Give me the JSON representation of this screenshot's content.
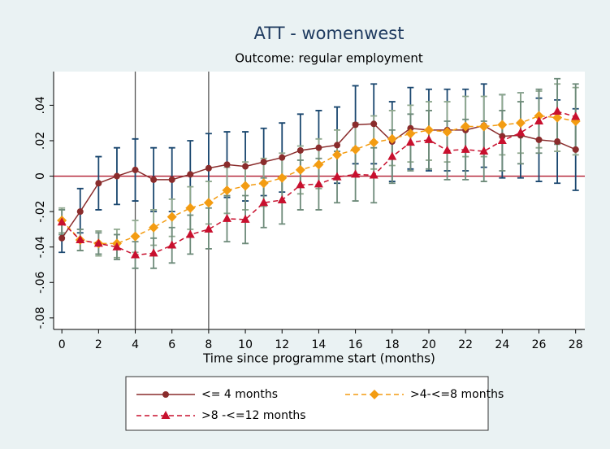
{
  "chart_data": {
    "type": "line",
    "title": "ATT - womenwest",
    "subtitle": "Outcome: regular employment",
    "x_label": "Time since programme start (months)",
    "x": [
      0,
      1,
      2,
      3,
      4,
      5,
      6,
      7,
      8,
      9,
      10,
      11,
      12,
      13,
      14,
      15,
      16,
      17,
      18,
      19,
      20,
      21,
      22,
      23,
      24,
      25,
      26,
      27,
      28
    ],
    "xlim": [
      -0.45,
      28.5
    ],
    "xticks": [
      0,
      2,
      4,
      6,
      8,
      10,
      12,
      14,
      16,
      18,
      20,
      22,
      24,
      26,
      28
    ],
    "ylim": [
      -0.0865,
      0.059
    ],
    "yticks": [
      {
        "value": -0.08,
        "label": "-.08"
      },
      {
        "value": -0.06,
        "label": "-.06"
      },
      {
        "value": -0.04,
        "label": "-.04"
      },
      {
        "value": -0.02,
        "label": "-.02"
      },
      0,
      {
        "value": 0.02,
        "label": ".02"
      },
      {
        "value": 0.04,
        "label": ".04"
      }
    ],
    "vlines": [
      4,
      8
    ],
    "hline": 0,
    "hline_color": "#b0182e",
    "series": [
      {
        "name": "<= 4 months",
        "color": "#8a2c2c",
        "ci_color": "#1a476f",
        "marker": "circle",
        "dashed": false,
        "values": [
          -0.035,
          -0.02,
          -0.004,
          0,
          0.0035,
          -0.002,
          -0.002,
          0.001,
          0.0045,
          0.0065,
          0.0055,
          0.008,
          0.0105,
          0.0145,
          0.016,
          0.0175,
          0.029,
          0.0295,
          0.0195,
          0.027,
          0.026,
          0.026,
          0.026,
          0.0285,
          0.0225,
          0.023,
          0.0205,
          0.0195,
          0.015
        ],
        "lower": [
          -0.043,
          -0.032,
          -0.019,
          -0.016,
          -0.014,
          -0.02,
          -0.02,
          -0.018,
          -0.015,
          -0.012,
          -0.014,
          -0.011,
          -0.009,
          -0.006,
          -0.005,
          -0.004,
          0.007,
          0.007,
          -0.003,
          0.004,
          0.003,
          0.003,
          0.003,
          0.005,
          -0.001,
          -0.001,
          -0.003,
          -0.004,
          -0.008
        ],
        "upper": [
          -0.027,
          -0.007,
          0.011,
          0.016,
          0.021,
          0.016,
          0.016,
          0.02,
          0.024,
          0.025,
          0.025,
          0.027,
          0.03,
          0.035,
          0.037,
          0.039,
          0.051,
          0.052,
          0.042,
          0.05,
          0.049,
          0.049,
          0.049,
          0.052,
          0.046,
          0.047,
          0.044,
          0.043,
          0.038
        ]
      },
      {
        "name": ">4-<=8 months",
        "color": "#f39c12",
        "ci_color": "#8fa88e",
        "marker": "diamond",
        "dashed": true,
        "values": [
          -0.025,
          -0.036,
          -0.038,
          -0.038,
          -0.034,
          -0.029,
          -0.023,
          -0.018,
          -0.015,
          -0.008,
          -0.0055,
          -0.004,
          -0.001,
          0.0035,
          0.0065,
          0.012,
          0.015,
          0.019,
          0.021,
          0.024,
          0.026,
          0.025,
          0.028,
          0.028,
          0.029,
          0.03,
          0.034,
          0.033,
          0.031
        ],
        "lower": [
          -0.032,
          -0.042,
          -0.045,
          -0.046,
          -0.043,
          -0.039,
          -0.034,
          -0.03,
          -0.027,
          -0.021,
          -0.019,
          -0.017,
          -0.014,
          -0.01,
          -0.007,
          -0.002,
          0.001,
          0.004,
          0.006,
          0.008,
          0.009,
          0.008,
          0.011,
          0.011,
          0.012,
          0.013,
          0.016,
          0.014,
          0.012
        ],
        "upper": [
          -0.018,
          -0.03,
          -0.031,
          -0.03,
          -0.025,
          -0.019,
          -0.013,
          -0.006,
          -0.003,
          0.005,
          0.008,
          0.01,
          0.013,
          0.017,
          0.021,
          0.026,
          0.03,
          0.034,
          0.037,
          0.04,
          0.042,
          0.042,
          0.045,
          0.045,
          0.046,
          0.047,
          0.048,
          0.052,
          0.05
        ]
      },
      {
        "name": ">8 -<=12 months",
        "color": "#c8102e",
        "ci_color": "#6e8b7a",
        "marker": "triangle",
        "dashed": true,
        "values": [
          -0.026,
          -0.036,
          -0.038,
          -0.04,
          -0.0445,
          -0.0435,
          -0.039,
          -0.033,
          -0.03,
          -0.024,
          -0.0245,
          -0.015,
          -0.0135,
          -0.005,
          -0.0045,
          -0.0005,
          0.001,
          0.0005,
          0.011,
          0.019,
          0.0205,
          0.0145,
          0.015,
          0.014,
          0.02,
          0.0245,
          0.031,
          0.0365,
          0.0335
        ],
        "lower": [
          -0.033,
          -0.042,
          -0.044,
          -0.047,
          -0.052,
          -0.052,
          -0.049,
          -0.044,
          -0.041,
          -0.037,
          -0.038,
          -0.029,
          -0.027,
          -0.019,
          -0.019,
          -0.015,
          -0.014,
          -0.015,
          -0.004,
          0.003,
          0.004,
          -0.002,
          -0.002,
          -0.003,
          0.003,
          0.007,
          0.013,
          0.018,
          0.015
        ],
        "upper": [
          -0.019,
          -0.03,
          -0.032,
          -0.033,
          -0.037,
          -0.035,
          -0.029,
          -0.022,
          -0.018,
          -0.011,
          -0.011,
          -0.001,
          0,
          0.009,
          0.01,
          0.014,
          0.016,
          0.016,
          0.026,
          0.035,
          0.037,
          0.031,
          0.032,
          0.031,
          0.037,
          0.042,
          0.049,
          0.055,
          0.052
        ]
      }
    ]
  }
}
